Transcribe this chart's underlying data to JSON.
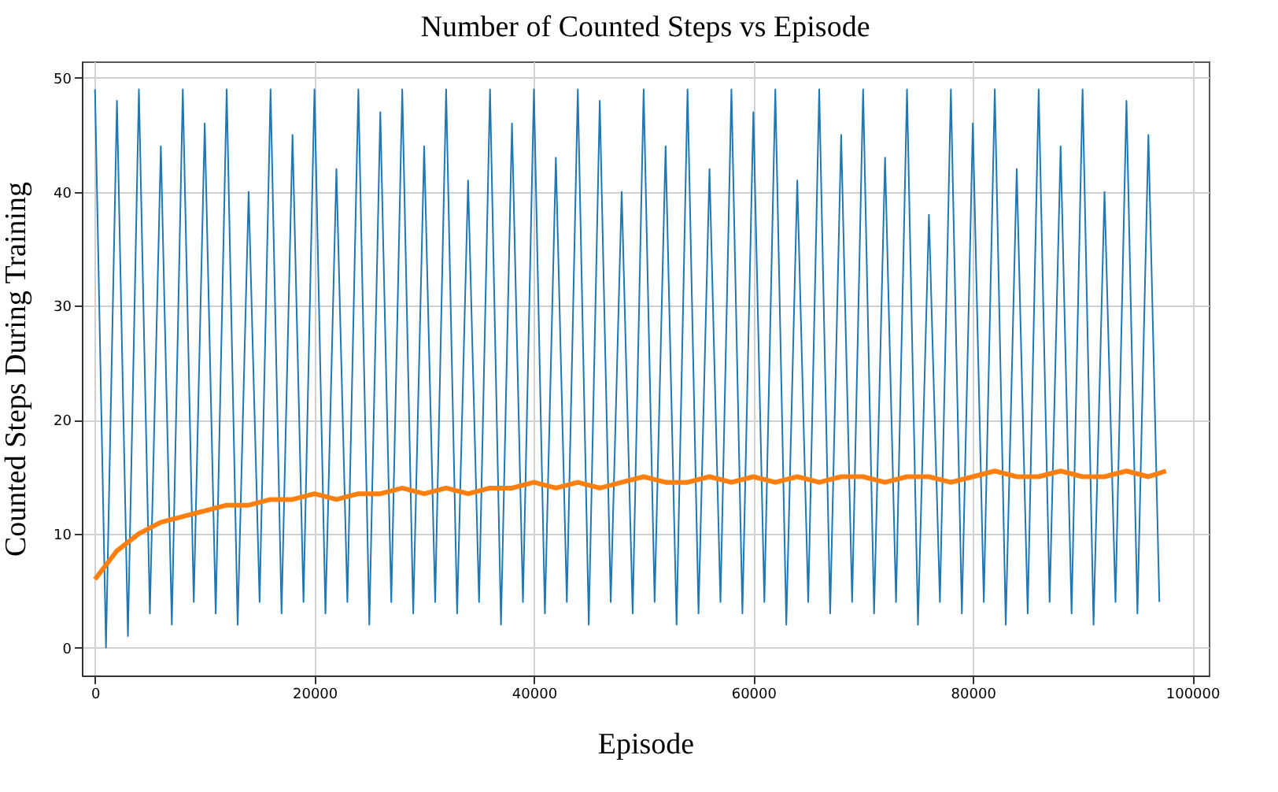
{
  "chart_data": {
    "type": "line",
    "title": "Number of Counted Steps vs Episode",
    "xlabel": "Episode",
    "ylabel": "Counted Steps During Training",
    "xlim": [
      -1200,
      101500
    ],
    "ylim": [
      -2.45,
      51.45
    ],
    "xticks": [
      0,
      20000,
      40000,
      60000,
      80000,
      100000
    ],
    "yticks": [
      0,
      10,
      20,
      30,
      40,
      50
    ],
    "grid": true,
    "line_style": "solid",
    "marker": "none",
    "series": [
      {
        "color": "#1f77b4",
        "x": [
          0,
          1000,
          2000,
          3000,
          4000,
          5000,
          6000,
          7000,
          8000,
          9000,
          10000,
          11000,
          12000,
          13000,
          14000,
          15000,
          16000,
          17000,
          18000,
          19000,
          20000,
          21000,
          22000,
          23000,
          24000,
          25000,
          26000,
          27000,
          28000,
          29000,
          30000,
          31000,
          32000,
          33000,
          34000,
          35000,
          36000,
          37000,
          38000,
          39000,
          40000,
          41000,
          42000,
          43000,
          44000,
          45000,
          46000,
          47000,
          48000,
          49000,
          50000,
          51000,
          52000,
          53000,
          54000,
          55000,
          56000,
          57000,
          58000,
          59000,
          60000,
          61000,
          62000,
          63000,
          64000,
          65000,
          66000,
          67000,
          68000,
          69000,
          70000,
          71000,
          72000,
          73000,
          74000,
          75000,
          76000,
          77000,
          78000,
          79000,
          80000,
          81000,
          82000,
          83000,
          84000,
          85000,
          86000,
          87000,
          88000,
          89000,
          90000,
          91000,
          92000,
          93000,
          94000,
          95000,
          96000,
          97000
        ],
        "values": [
          49,
          0,
          48,
          1,
          49,
          3,
          44,
          2,
          49,
          4,
          46,
          3,
          49,
          2,
          40,
          4,
          49,
          3,
          45,
          4,
          49,
          3,
          42,
          4,
          49,
          2,
          47,
          4,
          49,
          3,
          44,
          4,
          49,
          3,
          41,
          4,
          49,
          2,
          46,
          4,
          49,
          3,
          43,
          4,
          49,
          2,
          48,
          4,
          40,
          3,
          49,
          4,
          44,
          2,
          49,
          3,
          42,
          4,
          49,
          3,
          47,
          4,
          49,
          2,
          41,
          4,
          49,
          3,
          45,
          4,
          49,
          3,
          43,
          4,
          49,
          2,
          38,
          4,
          49,
          3,
          46,
          4,
          49,
          2,
          42,
          3,
          49,
          4,
          44,
          3,
          49,
          2,
          40,
          4,
          48,
          3,
          45,
          4
        ]
      },
      {
        "color": "#ff7f0e",
        "x": [
          0,
          2000,
          4000,
          6000,
          8000,
          10000,
          12000,
          14000,
          16000,
          18000,
          20000,
          22000,
          24000,
          26000,
          28000,
          30000,
          32000,
          34000,
          36000,
          38000,
          40000,
          42000,
          44000,
          46000,
          48000,
          50000,
          52000,
          54000,
          56000,
          58000,
          60000,
          62000,
          64000,
          66000,
          68000,
          70000,
          72000,
          74000,
          76000,
          78000,
          80000,
          82000,
          84000,
          86000,
          88000,
          90000,
          92000,
          94000,
          96000,
          97600
        ],
        "values": [
          6,
          8.5,
          10,
          11,
          11.5,
          12,
          12.5,
          12.5,
          13,
          13,
          13.5,
          13,
          13.5,
          13.5,
          14,
          13.5,
          14,
          13.5,
          14,
          14,
          14.5,
          14,
          14.5,
          14,
          14.5,
          15,
          14.5,
          14.5,
          15,
          14.5,
          15,
          14.5,
          15,
          14.5,
          15,
          15,
          14.5,
          15,
          15,
          14.5,
          15,
          15.5,
          15,
          15,
          15.5,
          15,
          15,
          15.5,
          15,
          15.5
        ]
      }
    ]
  }
}
